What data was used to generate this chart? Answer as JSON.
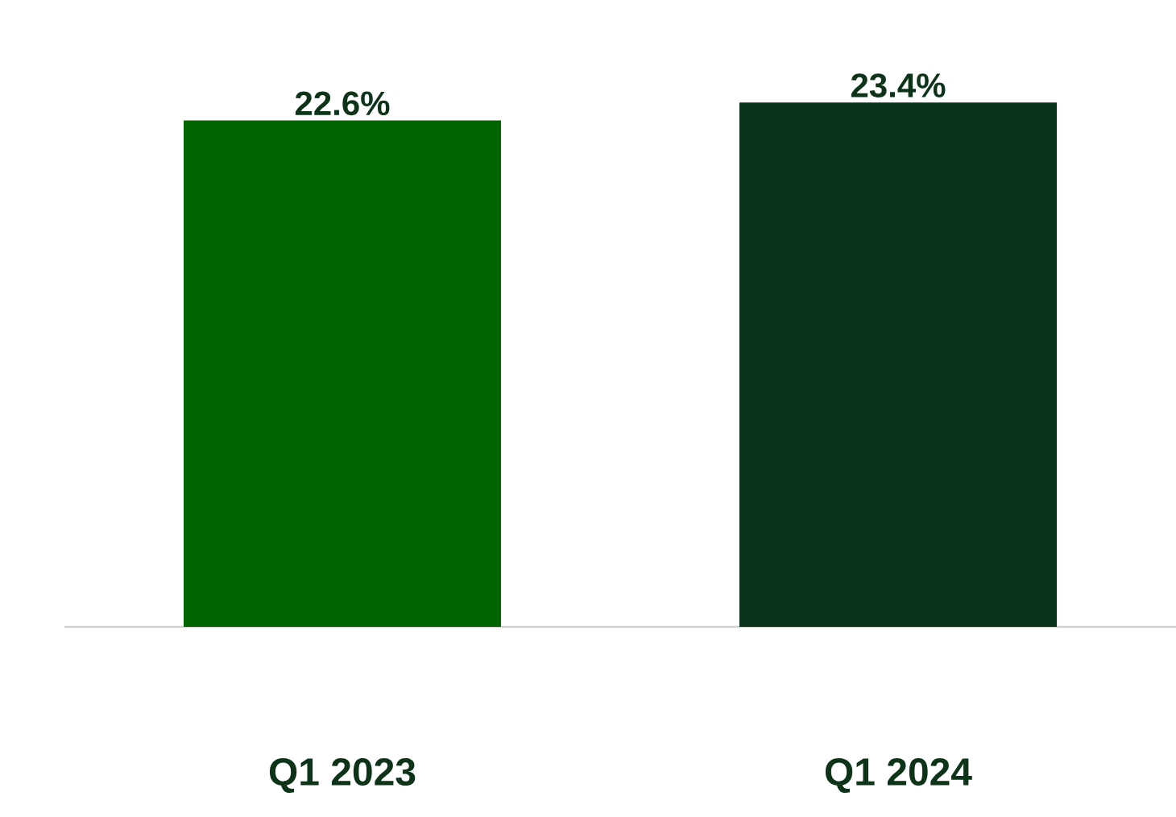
{
  "chart_data": {
    "type": "bar",
    "categories": [
      "Q1 2023",
      "Q1 2024"
    ],
    "values": [
      22.6,
      23.4
    ],
    "colors": [
      "#006400",
      "#07331a"
    ],
    "value_labels": [
      "22.6%",
      "23.4%"
    ]
  }
}
